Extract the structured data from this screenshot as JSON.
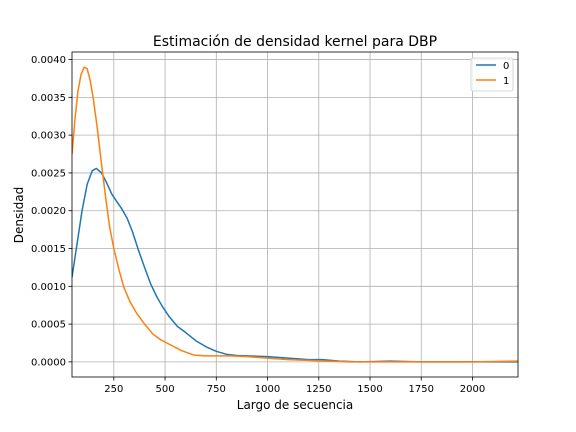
{
  "chart_data": {
    "type": "line",
    "title": "Estimación de densidad kernel para DBP",
    "xlabel": "Largo de secuencia",
    "ylabel": "Densidad",
    "xlim": [
      46,
      2222
    ],
    "ylim": [
      -0.0002,
      0.0041
    ],
    "xticks": [
      250,
      500,
      750,
      1000,
      1250,
      1500,
      1750,
      2000
    ],
    "yticks": [
      0.0,
      0.0005,
      0.001,
      0.0015,
      0.002,
      0.0025,
      0.003,
      0.0035,
      0.004
    ],
    "ytick_labels": [
      "0.0000",
      "0.0005",
      "0.0010",
      "0.0015",
      "0.0020",
      "0.0025",
      "0.0030",
      "0.0035",
      "0.0040"
    ],
    "grid": true,
    "legend_position": "top-right",
    "series": [
      {
        "name": "0",
        "color": "#1f77b4",
        "points": [
          [
            46,
            0.00112
          ],
          [
            70,
            0.00155
          ],
          [
            95,
            0.002
          ],
          [
            120,
            0.00235
          ],
          [
            145,
            0.00253
          ],
          [
            165,
            0.00256
          ],
          [
            190,
            0.0025
          ],
          [
            215,
            0.00237
          ],
          [
            240,
            0.00222
          ],
          [
            265,
            0.00212
          ],
          [
            290,
            0.00202
          ],
          [
            315,
            0.0019
          ],
          [
            340,
            0.00173
          ],
          [
            370,
            0.00148
          ],
          [
            400,
            0.00125
          ],
          [
            430,
            0.00103
          ],
          [
            460,
            0.00086
          ],
          [
            490,
            0.00072
          ],
          [
            520,
            0.0006
          ],
          [
            560,
            0.00047
          ],
          [
            600,
            0.00039
          ],
          [
            650,
            0.00028
          ],
          [
            700,
            0.0002
          ],
          [
            750,
            0.00014
          ],
          [
            800,
            0.0001
          ],
          [
            850,
            8.5e-05
          ],
          [
            900,
            8e-05
          ],
          [
            1000,
            7e-05
          ],
          [
            1100,
            5e-05
          ],
          [
            1200,
            3e-05
          ],
          [
            1270,
            3e-05
          ],
          [
            1350,
            1e-05
          ],
          [
            1450,
            0.0
          ],
          [
            1600,
            1e-05
          ],
          [
            1750,
            0.0
          ],
          [
            2000,
            0.0
          ],
          [
            2222,
            0.0
          ]
        ]
      },
      {
        "name": "1",
        "color": "#ff7f0e",
        "points": [
          [
            46,
            0.00275
          ],
          [
            60,
            0.0032
          ],
          [
            75,
            0.00358
          ],
          [
            90,
            0.0038
          ],
          [
            105,
            0.0039
          ],
          [
            120,
            0.00388
          ],
          [
            135,
            0.00372
          ],
          [
            150,
            0.00348
          ],
          [
            170,
            0.00308
          ],
          [
            190,
            0.00262
          ],
          [
            210,
            0.00218
          ],
          [
            230,
            0.00178
          ],
          [
            250,
            0.0015
          ],
          [
            275,
            0.00122
          ],
          [
            300,
            0.00098
          ],
          [
            330,
            0.00079
          ],
          [
            360,
            0.00065
          ],
          [
            400,
            0.0005
          ],
          [
            440,
            0.00037
          ],
          [
            480,
            0.00029
          ],
          [
            530,
            0.00022
          ],
          [
            580,
            0.00015
          ],
          [
            640,
            9e-05
          ],
          [
            700,
            8e-05
          ],
          [
            760,
            8e-05
          ],
          [
            820,
            8e-05
          ],
          [
            900,
            7e-05
          ],
          [
            1000,
            5e-05
          ],
          [
            1100,
            3e-05
          ],
          [
            1200,
            2e-05
          ],
          [
            1300,
            1e-05
          ],
          [
            1400,
            0.0
          ],
          [
            1600,
            0.0
          ],
          [
            1800,
            0.0
          ],
          [
            2000,
            0.0
          ],
          [
            2222,
            1e-05
          ]
        ]
      }
    ]
  }
}
